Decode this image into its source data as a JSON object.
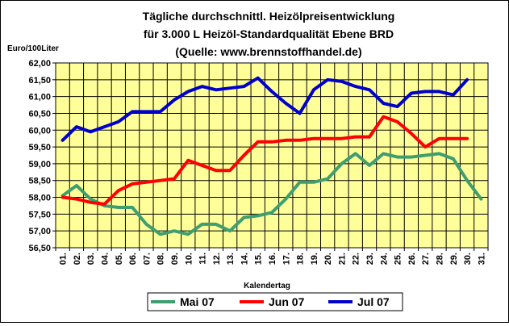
{
  "chart_data": {
    "type": "line",
    "title": [
      "Tägliche durchschnittl. Heizölpreisentwicklung",
      "für 3.000 L Heizöl-Standardqualität Ebene BRD",
      "(Quelle: www.brennstoffhandel.de)"
    ],
    "ylabel": "Euro/100Liter",
    "xlabel": "Kalendertag",
    "ylim": [
      56.5,
      62.0
    ],
    "ytick_labels": [
      "62,00",
      "61,50",
      "61,00",
      "60,50",
      "60,00",
      "59,50",
      "59,00",
      "58,50",
      "58,00",
      "57,50",
      "57,00",
      "56,50"
    ],
    "categories": [
      "01",
      "02",
      "03",
      "04",
      "05",
      "06",
      "07",
      "08",
      "09",
      "10",
      "11",
      "12",
      "13",
      "14",
      "15",
      "16",
      "17",
      "18",
      "19",
      "20",
      "21",
      "22",
      "23",
      "24",
      "25",
      "26",
      "27",
      "28",
      "29",
      "30",
      "31"
    ],
    "grid": true,
    "legend_position": "bottom",
    "background": "#ffff99",
    "series": [
      {
        "name": "Mai 07",
        "color": "#3f9e6f",
        "values": [
          58.05,
          58.35,
          57.95,
          57.75,
          57.7,
          57.7,
          57.2,
          56.9,
          57.0,
          56.9,
          57.2,
          57.2,
          57.0,
          57.4,
          57.45,
          57.55,
          57.95,
          58.45,
          58.45,
          58.55,
          59.0,
          59.3,
          58.95,
          59.3,
          59.2,
          59.2,
          59.25,
          59.3,
          59.15,
          58.5,
          57.95
        ]
      },
      {
        "name": "Jun 07",
        "color": "#ff0000",
        "values": [
          58.0,
          57.95,
          57.85,
          57.8,
          58.2,
          58.4,
          58.45,
          58.5,
          58.55,
          59.1,
          58.95,
          58.8,
          58.8,
          59.25,
          59.65,
          59.65,
          59.7,
          59.7,
          59.75,
          59.75,
          59.75,
          59.8,
          59.8,
          60.4,
          60.25,
          59.9,
          59.5,
          59.75,
          59.75,
          59.75,
          null
        ]
      },
      {
        "name": "Jul 07",
        "color": "#0000cc",
        "values": [
          59.7,
          60.1,
          59.95,
          60.1,
          60.25,
          60.55,
          60.55,
          60.55,
          60.9,
          61.15,
          61.3,
          61.2,
          61.25,
          61.3,
          61.55,
          61.15,
          60.8,
          60.5,
          61.2,
          61.5,
          61.45,
          61.3,
          61.2,
          60.8,
          60.7,
          61.1,
          61.15,
          61.15,
          61.05,
          61.5,
          null
        ]
      }
    ]
  }
}
